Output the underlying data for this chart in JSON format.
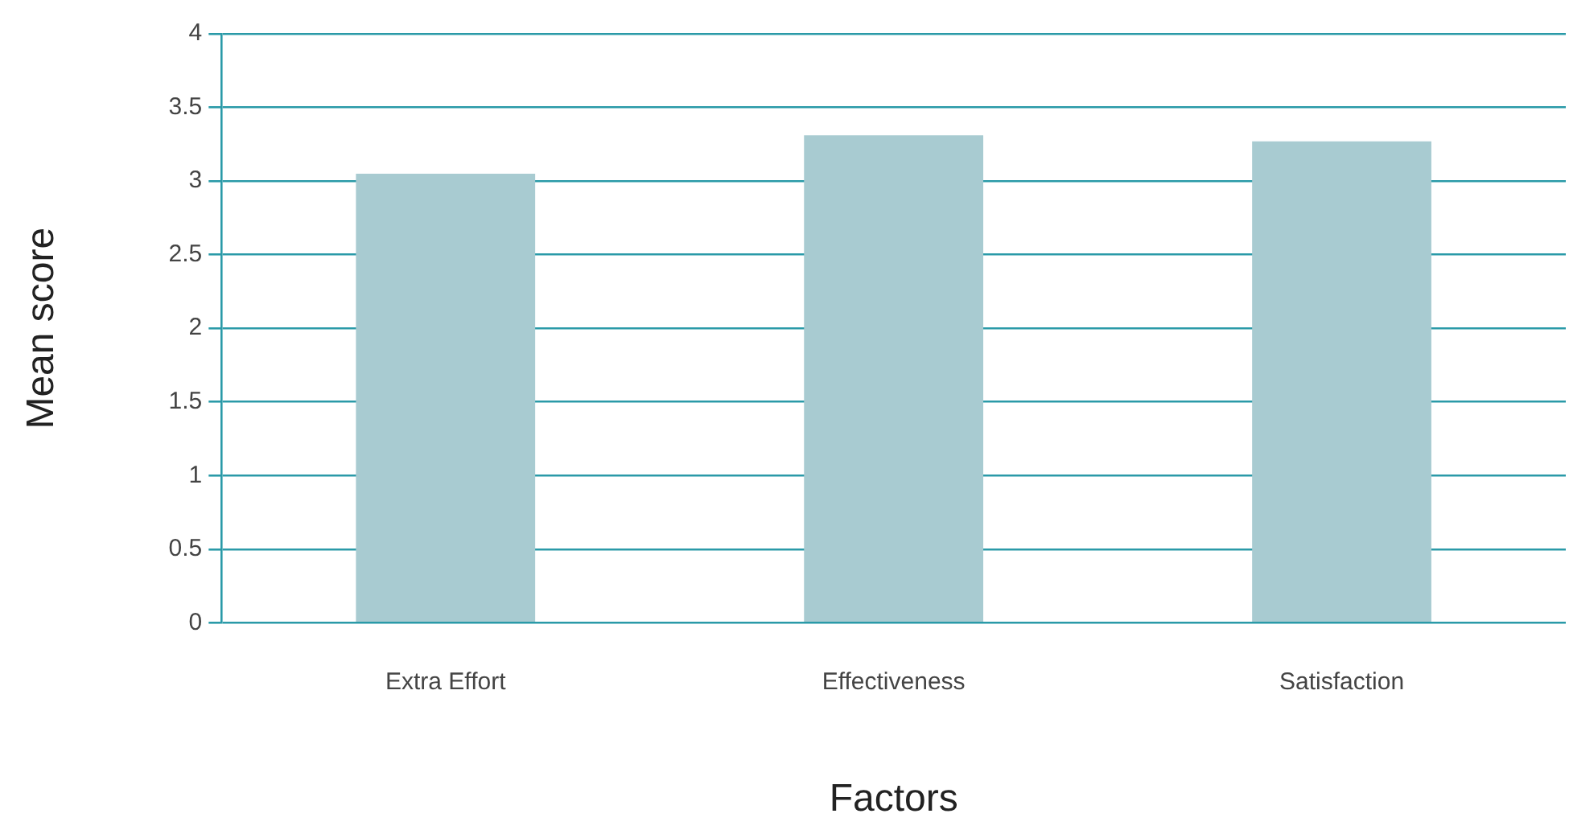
{
  "chart_data": {
    "type": "bar",
    "xlabel": "Factors",
    "ylabel": "Mean score",
    "categories": [
      "Extra Effort",
      "Effectiveness",
      "Satisfaction"
    ],
    "values": [
      3.05,
      3.31,
      3.27
    ],
    "color": "#a8cbd1",
    "ylim": [
      0,
      4
    ],
    "yticks": [
      0,
      0.5,
      1,
      1.5,
      2,
      2.5,
      3,
      3.5,
      4
    ],
    "grid": "y",
    "legend": false
  }
}
